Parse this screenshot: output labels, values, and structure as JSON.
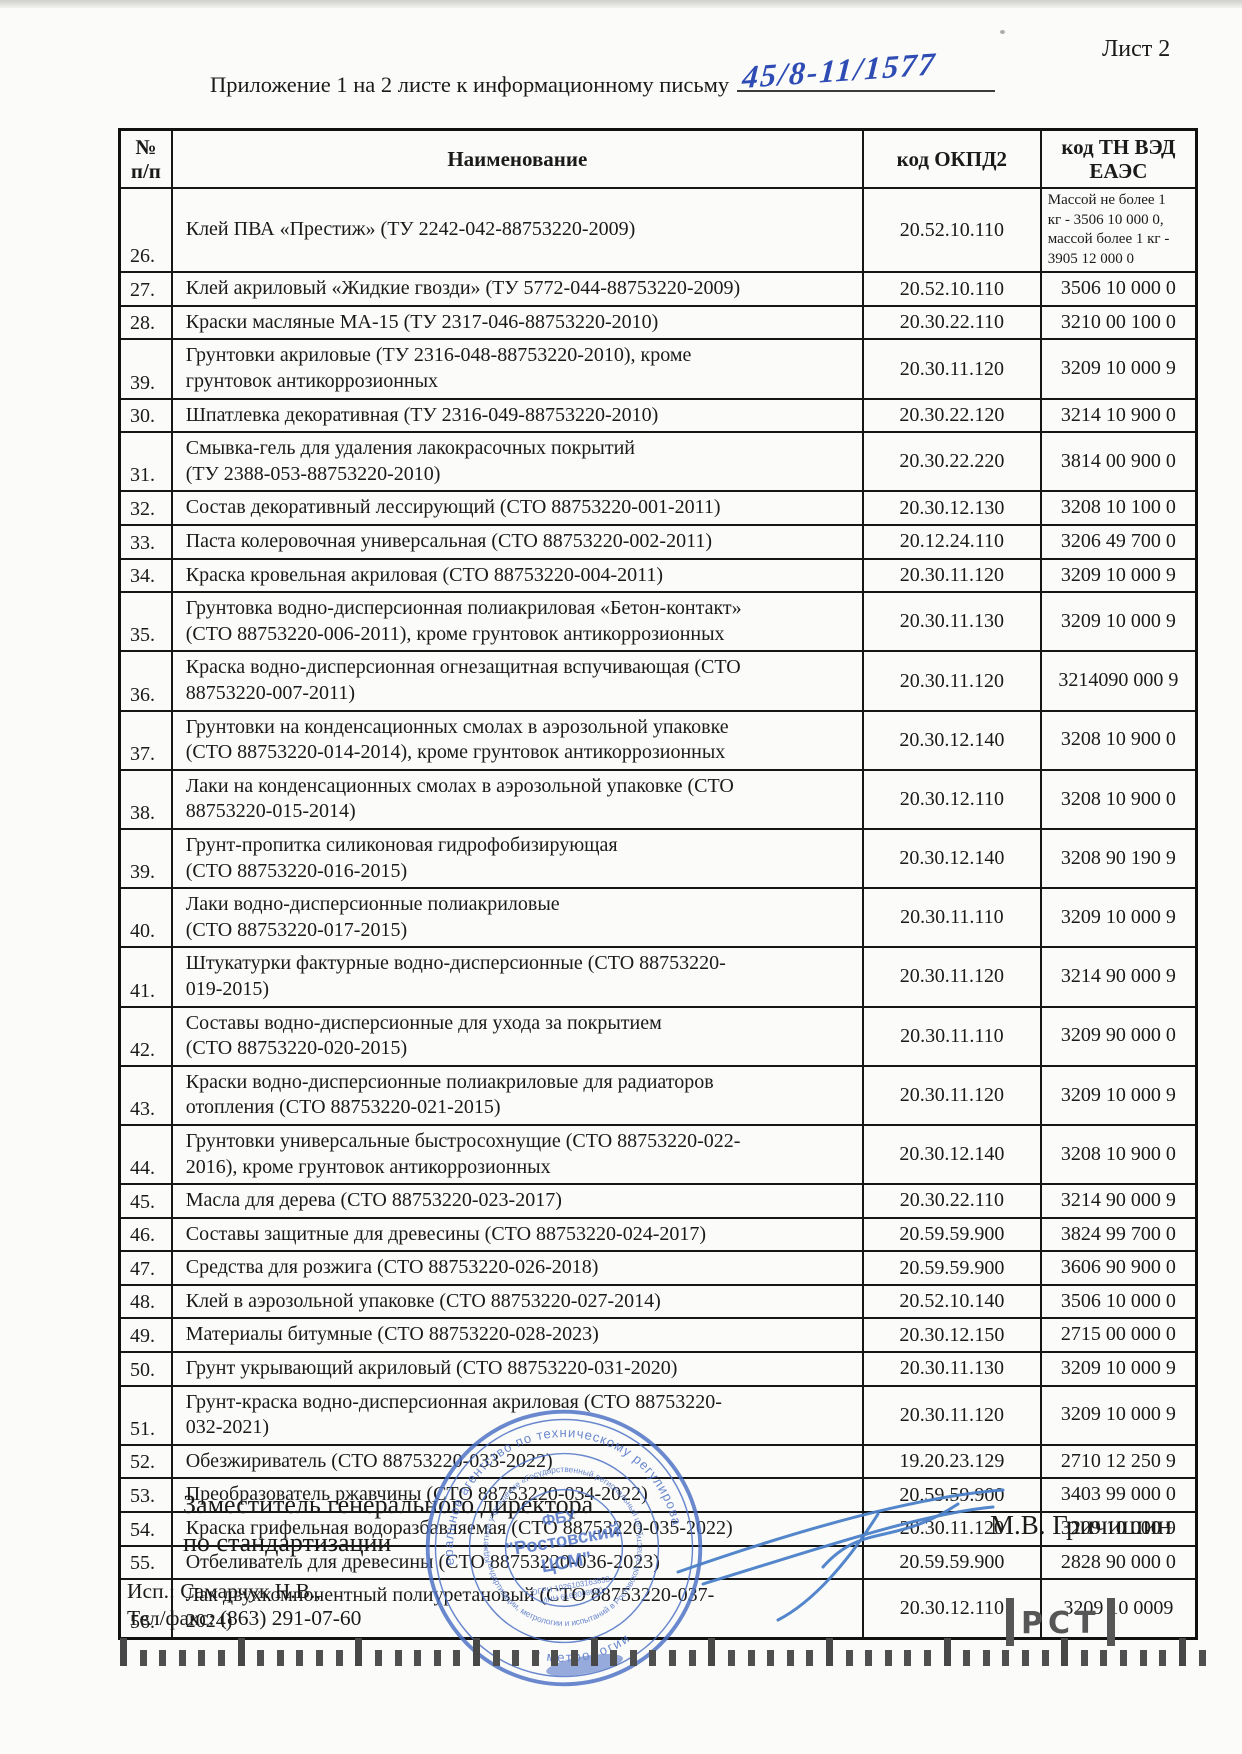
{
  "page": {
    "sheet_label": "Лист 2",
    "appendix_label": "Приложение 1 на 2 листе к информационному письму",
    "letter_number_handwritten": "45/8-11/1577"
  },
  "colors": {
    "ink_blue": "#2e4cb3",
    "stamp_blue": "#4b6fc5",
    "text": "#1a1a1a"
  },
  "table": {
    "headers": {
      "num": "№\nп/п",
      "name": "Наименование",
      "okpd2": "код ОКПД2",
      "tnved": "код ТН ВЭД\nЕАЭС"
    },
    "rows": [
      {
        "num": "26.",
        "name": "Клей ПВА «Престиж» (ТУ 2242-042-88753220-2009)",
        "okpd2": "20.52.10.110",
        "tnved": "Массой не более 1\nкг - 3506 10 000 0,\nмассой более 1 кг -\n3905 12 000 0",
        "tnved_small": true
      },
      {
        "num": "27.",
        "name": "Клей акриловый «Жидкие гвозди» (ТУ 5772-044-88753220-2009)",
        "okpd2": "20.52.10.110",
        "tnved": "3506 10 000 0"
      },
      {
        "num": "28.",
        "name": "Краски масляные МА-15 (ТУ 2317-046-88753220-2010)",
        "okpd2": "20.30.22.110",
        "tnved": "3210 00 100 0"
      },
      {
        "num": "39.",
        "name": "Грунтовки акриловые (ТУ 2316-048-88753220-2010), кроме\nгрунтовок антикоррозионных",
        "okpd2": "20.30.11.120",
        "tnved": "3209 10 000 9"
      },
      {
        "num": "30.",
        "name": "Шпатлевка декоративная  (ТУ 2316-049-88753220-2010)",
        "okpd2": "20.30.22.120",
        "tnved": "3214 10 900 0"
      },
      {
        "num": "31.",
        "name": "Смывка-гель для удаления лакокрасочных покрытий\n(ТУ 2388-053-88753220-2010)",
        "okpd2": "20.30.22.220",
        "tnved": "3814 00 900 0"
      },
      {
        "num": "32.",
        "name": "Состав декоративный лессирующий (СТО 88753220-001-2011)",
        "okpd2": "20.30.12.130",
        "tnved": "3208 10 100 0"
      },
      {
        "num": "33.",
        "name": "Паста колеровочная универсальная (СТО 88753220-002-2011)",
        "okpd2": "20.12.24.110",
        "tnved": "3206 49 700 0"
      },
      {
        "num": "34.",
        "name": "Краска кровельная акриловая (СТО 88753220-004-2011)",
        "okpd2": "20.30.11.120",
        "tnved": "3209 10 000 9"
      },
      {
        "num": "35.",
        "name": "Грунтовка водно-дисперсионная полиакриловая «Бетон-контакт»\n(СТО 88753220-006-2011), кроме грунтовок антикоррозионных",
        "okpd2": "20.30.11.130",
        "tnved": "3209 10 000 9"
      },
      {
        "num": "36.",
        "name": "Краска водно-дисперсионная огнезащитная вспучивающая (СТО\n88753220-007-2011)",
        "okpd2": "20.30.11.120",
        "tnved": "3214090 000 9"
      },
      {
        "num": "37.",
        "name": "Грунтовки на конденсационных смолах в аэрозольной упаковке\n(СТО 88753220-014-2014), кроме грунтовок антикоррозионных",
        "okpd2": "20.30.12.140",
        "tnved": "3208 10 900 0"
      },
      {
        "num": "38.",
        "name": "Лаки на конденсационных смолах в аэрозольной упаковке (СТО\n88753220-015-2014)",
        "okpd2": "20.30.12.110",
        "tnved": "3208 10 900 0"
      },
      {
        "num": "39.",
        "name": "Грунт-пропитка силиконовая гидрофобизирующая\n(СТО 88753220-016-2015)",
        "okpd2": "20.30.12.140",
        "tnved": "3208 90 190 9"
      },
      {
        "num": "40.",
        "name": "Лаки водно-дисперсионные полиакриловые\n(СТО 88753220-017-2015)",
        "okpd2": "20.30.11.110",
        "tnved": "3209 10 000 9"
      },
      {
        "num": "41.",
        "name": "Штукатурки фактурные водно-дисперсионные (СТО 88753220-\n019-2015)",
        "okpd2": "20.30.11.120",
        "tnved": "3214 90 000 9"
      },
      {
        "num": "42.",
        "name": "Составы водно-дисперсионные для ухода за покрытием\n(СТО 88753220-020-2015)",
        "okpd2": "20.30.11.110",
        "tnved": "3209 90 000 0"
      },
      {
        "num": "43.",
        "name": "Краски водно-дисперсионные полиакриловые для радиаторов\nотопления (СТО 88753220-021-2015)",
        "okpd2": "20.30.11.120",
        "tnved": "3209 10 000 9"
      },
      {
        "num": "44.",
        "name": "Грунтовки универсальные быстросохнущие (СТО 88753220-022-\n2016), кроме грунтовок антикоррозионных",
        "okpd2": "20.30.12.140",
        "tnved": "3208 10 900 0"
      },
      {
        "num": "45.",
        "name": "Масла для дерева (СТО 88753220-023-2017)",
        "okpd2": "20.30.22.110",
        "tnved": "3214 90 000 9"
      },
      {
        "num": "46.",
        "name": "Составы защитные для древесины (СТО 88753220-024-2017)",
        "okpd2": "20.59.59.900",
        "tnved": "3824 99 700 0"
      },
      {
        "num": "47.",
        "name": "Средства для розжига (СТО 88753220-026-2018)",
        "okpd2": "20.59.59.900",
        "tnved": "3606 90 900 0"
      },
      {
        "num": "48.",
        "name": "Клей в аэрозольной упаковке (СТО 88753220-027-2014)",
        "okpd2": "20.52.10.140",
        "tnved": "3506 10 000 0"
      },
      {
        "num": "49.",
        "name": "Материалы битумные (СТО 88753220-028-2023)",
        "okpd2": "20.30.12.150",
        "tnved": "2715 00 000 0"
      },
      {
        "num": "50.",
        "name": "Грунт укрывающий акриловый (СТО 88753220-031-2020)",
        "okpd2": "20.30.11.130",
        "tnved": "3209 10 000 9"
      },
      {
        "num": "51.",
        "name": "Грунт-краска водно-дисперсионная акриловая (СТО 88753220-\n032-2021)",
        "okpd2": "20.30.11.120",
        "tnved": "3209 10 000 9"
      },
      {
        "num": "52.",
        "name": "Обезжириватель (СТО 88753220-033-2022)",
        "okpd2": "19.20.23.129",
        "tnved": "2710 12 250 9"
      },
      {
        "num": "53.",
        "name": "Преобразователь ржавчины (СТО 88753220-034-2022)",
        "okpd2": "20.59.59.900",
        "tnved": "3403 99 000 0"
      },
      {
        "num": "54.",
        "name": "Краска грифельная водоразбавляемая (СТО 88753220-035-2022)",
        "okpd2": "20.30.11.120",
        "tnved": "3209 10 000 9"
      },
      {
        "num": "55.",
        "name": "Отбеливатель для древесины (СТО 88753220-036-2023)",
        "okpd2": "20.59.59.900",
        "tnved": "2828 90 000 0"
      },
      {
        "num": "56.",
        "name": "Лак двухкомпонентный полиуретановый (СТО 88753220-037-\n2024)",
        "okpd2": "20.30.12.110",
        "tnved": "3209 10 0009"
      }
    ]
  },
  "footer": {
    "position_line1": "Заместитель генерального директора",
    "position_line2": "по стандартизации",
    "signer_name": "М.В. Гричишин",
    "executor_line1": "Исп.: Самарчук Н.В.,",
    "executor_line2": "Тел/факс: (863) 291-07-60",
    "rst_label": "РСТ"
  },
  "stamp": {
    "ring_outer_top": "Федеральное агентство по техническому регулированию",
    "ring_outer_bottom": "и метрологии",
    "ring_inner_top": "бюджетное учреждение «Государственный региональный центр",
    "ring_inner_bottom": "стандартизации, метрологии и испытаний в Ростовской области»",
    "center_line1": "ФБУ",
    "center_line2": "\"Ростовский",
    "center_line3": "ЦСМ\"",
    "center_line4": "ОГРН 1026103163833",
    "center_line5": "ИНН 6163008640"
  }
}
